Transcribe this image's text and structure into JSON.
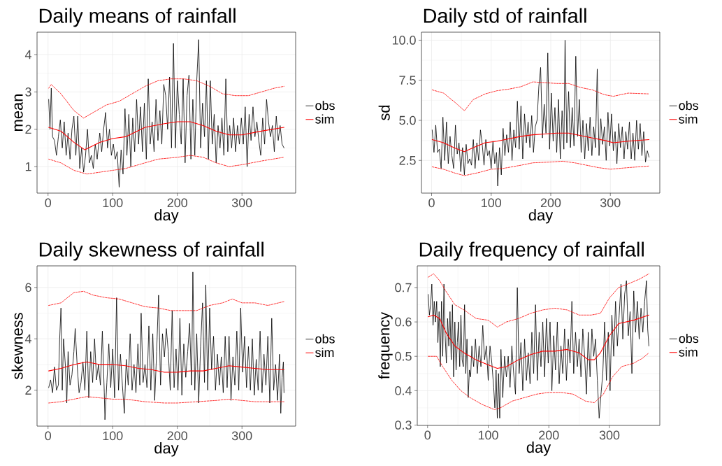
{
  "chart_data": [
    {
      "type": "line",
      "title": "Daily means of rainfall",
      "xlabel": "day",
      "ylabel": "mean",
      "xlim": [
        -17,
        383
      ],
      "ylim": [
        0.29,
        4.6
      ],
      "xticks": [
        0,
        100,
        200,
        300
      ],
      "yticks": [
        1,
        2,
        3,
        4
      ],
      "grid": true,
      "legend": "right",
      "series": [
        {
          "name": "obs",
          "color": "#000000",
          "x": [
            1,
            3,
            5,
            7,
            10,
            13,
            16,
            19,
            22,
            25,
            28,
            31,
            34,
            37,
            40,
            43,
            46,
            49,
            52,
            55,
            58,
            61,
            64,
            67,
            70,
            73,
            76,
            80,
            83,
            86,
            89,
            92,
            95,
            98,
            101,
            104,
            107,
            110,
            113,
            116,
            119,
            122,
            125,
            128,
            131,
            134,
            137,
            140,
            143,
            146,
            149,
            152,
            155,
            158,
            161,
            164,
            167,
            170,
            173,
            176,
            179,
            182,
            185,
            188,
            191,
            194,
            197,
            200,
            203,
            206,
            209,
            212,
            215,
            218,
            221,
            224,
            227,
            230,
            233,
            236,
            239,
            242,
            245,
            248,
            251,
            254,
            257,
            260,
            263,
            266,
            269,
            272,
            275,
            278,
            281,
            284,
            287,
            290,
            293,
            296,
            299,
            302,
            305,
            308,
            311,
            314,
            317,
            320,
            323,
            326,
            329,
            332,
            335,
            338,
            341,
            344,
            347,
            350,
            353,
            356,
            359,
            362,
            365
          ],
          "values": [
            2.8,
            2.0,
            3.1,
            1.8,
            1.7,
            1.3,
            1.8,
            2.25,
            1.5,
            2.2,
            1.3,
            1.9,
            1.2,
            2.0,
            2.35,
            1.3,
            2.35,
            0.95,
            1.5,
            0.85,
            1.3,
            2.0,
            1.1,
            1.3,
            0.95,
            1.6,
            1.2,
            1.9,
            1.4,
            2.0,
            2.45,
            1.5,
            2.0,
            1.3,
            1.6,
            1.2,
            1.4,
            0.45,
            1.45,
            0.8,
            2.55,
            1.3,
            2.4,
            1.0,
            2.3,
            1.4,
            2.8,
            1.6,
            2.6,
            1.4,
            2.7,
            1.2,
            3.35,
            1.6,
            2.2,
            1.4,
            2.8,
            1.7,
            2.5,
            1.6,
            3.2,
            2.9,
            2.0,
            3.4,
            1.5,
            4.3,
            1.5,
            3.3,
            2.4,
            1.6,
            3.35,
            1.1,
            2.9,
            3.45,
            1.2,
            2.8,
            1.3,
            3.3,
            4.4,
            1.5,
            2.7,
            1.8,
            3.3,
            1.2,
            3.3,
            1.6,
            2.4,
            1.1,
            2.1,
            1.5,
            2.3,
            1.3,
            3.35,
            1.4,
            2.1,
            1.5,
            2.3,
            1.4,
            2.1,
            1.6,
            2.3,
            1.6,
            2.6,
            1.0,
            2.4,
            1.7,
            2.6,
            1.8,
            2.2,
            1.7,
            1.3,
            2.3,
            1.6,
            2.8,
            2.2,
            1.8,
            2.1,
            1.4,
            2.35,
            1.7,
            2.1,
            1.6,
            1.5
          ]
        },
        {
          "name": "sim",
          "color": "#ff0000",
          "x": [
            1,
            20,
            40,
            57,
            80,
            100,
            120,
            150,
            180,
            200,
            220,
            240,
            260,
            280,
            300,
            330,
            365
          ],
          "values": [
            2.05,
            1.95,
            1.65,
            1.45,
            1.65,
            1.75,
            1.8,
            2.05,
            2.15,
            2.2,
            2.2,
            2.1,
            1.95,
            1.85,
            1.85,
            1.95,
            2.05
          ]
        },
        {
          "color": "#ff0000",
          "line_style": "dashed",
          "x": [
            1,
            5,
            20,
            40,
            55,
            70,
            90,
            110,
            130,
            150,
            170,
            190,
            210,
            230,
            250,
            270,
            290,
            310,
            330,
            350,
            365
          ],
          "values": [
            3.1,
            3.2,
            2.95,
            2.5,
            2.3,
            2.45,
            2.65,
            2.75,
            2.95,
            3.15,
            3.3,
            3.35,
            3.35,
            3.3,
            3.15,
            2.95,
            2.9,
            2.9,
            3.0,
            3.1,
            3.15
          ]
        },
        {
          "color": "#ff0000",
          "line_style": "dashed",
          "x": [
            1,
            20,
            40,
            60,
            80,
            100,
            120,
            150,
            170,
            200,
            220,
            240,
            260,
            280,
            300,
            330,
            365
          ],
          "values": [
            1.2,
            1.1,
            0.9,
            0.8,
            0.85,
            0.9,
            0.95,
            1.1,
            1.2,
            1.25,
            1.3,
            1.25,
            1.1,
            1.0,
            1.05,
            1.15,
            1.25
          ]
        }
      ]
    },
    {
      "type": "line",
      "title": "Daily std of rainfall",
      "xlabel": "day",
      "ylabel": "sd",
      "xlim": [
        -17,
        383
      ],
      "ylim": [
        0.46,
        10.5
      ],
      "xticks": [
        0,
        100,
        200,
        300
      ],
      "yticks": [
        2.5,
        {
          "value": 5,
          "label": "5.0"
        },
        7.5,
        {
          "value": 10,
          "label": "10.0"
        }
      ],
      "grid": true,
      "legend": "right",
      "series": [
        {
          "name": "obs",
          "color": "#000000",
          "x": [
            1,
            4,
            7,
            10,
            13,
            16,
            19,
            22,
            25,
            28,
            31,
            34,
            37,
            40,
            43,
            46,
            49,
            52,
            55,
            58,
            61,
            64,
            67,
            70,
            73,
            76,
            79,
            82,
            85,
            88,
            91,
            94,
            97,
            100,
            103,
            106,
            109,
            111,
            114,
            117,
            120,
            123,
            126,
            129,
            132,
            135,
            138,
            141,
            144,
            147,
            150,
            153,
            156,
            159,
            162,
            165,
            168,
            171,
            174,
            177,
            180,
            183,
            186,
            189,
            192,
            195,
            198,
            201,
            204,
            207,
            210,
            213,
            216,
            219,
            222,
            224,
            227,
            230,
            233,
            236,
            239,
            242,
            245,
            248,
            251,
            254,
            257,
            260,
            263,
            266,
            269,
            272,
            275,
            278,
            281,
            284,
            287,
            290,
            293,
            296,
            299,
            302,
            305,
            308,
            311,
            314,
            317,
            320,
            323,
            326,
            329,
            332,
            335,
            338,
            341,
            344,
            347,
            350,
            353,
            356,
            359,
            362,
            365
          ],
          "values": [
            4.4,
            3.0,
            4.7,
            3.0,
            3.2,
            2.0,
            5.2,
            2.5,
            4.9,
            2.3,
            4.0,
            2.8,
            2.0,
            4.7,
            2.9,
            3.6,
            1.8,
            3.3,
            1.6,
            3.5,
            2.3,
            2.6,
            2.2,
            3.8,
            2.0,
            3.6,
            2.5,
            4.4,
            3.5,
            2.2,
            3.8,
            2.8,
            3.1,
            2.0,
            3.7,
            2.3,
            3.0,
            0.9,
            3.3,
            1.6,
            4.5,
            2.8,
            4.1,
            3.0,
            4.9,
            2.5,
            4.4,
            3.3,
            6.2,
            3.2,
            5.9,
            2.6,
            5.4,
            3.6,
            4.9,
            3.3,
            5.3,
            3.0,
            4.6,
            5.0,
            7.1,
            8.3,
            3.9,
            6.0,
            4.2,
            9.2,
            3.2,
            6.7,
            3.7,
            5.8,
            3.0,
            6.3,
            2.6,
            5.6,
            3.2,
            10.0,
            3.6,
            6.8,
            3.3,
            5.8,
            3.4,
            9.0,
            4.0,
            6.3,
            3.0,
            5.0,
            2.6,
            4.8,
            3.1,
            5.2,
            2.8,
            4.6,
            3.3,
            8.2,
            2.8,
            5.1,
            3.5,
            4.6,
            2.5,
            5.5,
            3.4,
            5.4,
            3.1,
            4.3,
            2.3,
            4.8,
            3.3,
            4.6,
            2.6,
            4.3,
            3.2,
            4.9,
            2.6,
            4.2,
            2.5,
            5.0,
            3.2,
            4.8,
            2.8,
            4.3,
            2.4,
            3.1,
            2.7
          ]
        },
        {
          "name": "sim",
          "color": "#ff0000",
          "x": [
            1,
            20,
            40,
            55,
            70,
            90,
            110,
            130,
            150,
            170,
            190,
            210,
            230,
            250,
            270,
            290,
            305,
            330,
            365
          ],
          "values": [
            3.8,
            3.6,
            3.25,
            3.05,
            3.3,
            3.6,
            3.7,
            3.85,
            4.0,
            4.1,
            4.15,
            4.2,
            4.2,
            4.05,
            3.9,
            3.75,
            3.6,
            3.7,
            3.8
          ]
        },
        {
          "color": "#ff0000",
          "line_style": "dashed",
          "x": [
            1,
            20,
            40,
            55,
            70,
            90,
            110,
            130,
            150,
            170,
            190,
            210,
            230,
            250,
            270,
            290,
            305,
            330,
            365
          ],
          "values": [
            6.9,
            6.7,
            6.1,
            5.6,
            6.3,
            6.65,
            6.85,
            6.95,
            7.1,
            7.4,
            7.35,
            7.3,
            7.3,
            7.05,
            6.9,
            6.6,
            6.5,
            6.7,
            6.65
          ]
        },
        {
          "color": "#ff0000",
          "line_style": "dashed",
          "x": [
            1,
            20,
            40,
            55,
            80,
            100,
            120,
            150,
            170,
            200,
            220,
            240,
            260,
            280,
            300,
            330,
            365
          ],
          "values": [
            2.1,
            1.95,
            1.7,
            1.55,
            1.75,
            1.95,
            2.0,
            2.2,
            2.35,
            2.4,
            2.45,
            2.35,
            2.2,
            2.05,
            1.95,
            2.05,
            2.15
          ]
        }
      ]
    },
    {
      "type": "line",
      "title": "Daily skewness of rainfall",
      "xlabel": "day",
      "ylabel": "skewness",
      "xlim": [
        -17,
        383
      ],
      "ylim": [
        0.6,
        6.84
      ],
      "xticks": [
        0,
        100,
        200,
        300
      ],
      "yticks": [
        2,
        4,
        6
      ],
      "grid": true,
      "legend": "right",
      "series": [
        {
          "name": "obs",
          "color": "#000000",
          "x": [
            1,
            4,
            7,
            10,
            13,
            16,
            18,
            20,
            22,
            24,
            27,
            29,
            31,
            34,
            37,
            40,
            42,
            45,
            48,
            51,
            54,
            57,
            60,
            63,
            66,
            69,
            72,
            75,
            78,
            81,
            84,
            87,
            88,
            91,
            94,
            97,
            100,
            103,
            106,
            109,
            112,
            115,
            118,
            121,
            124,
            127,
            130,
            133,
            136,
            139,
            142,
            144,
            147,
            150,
            153,
            156,
            159,
            162,
            165,
            168,
            171,
            174,
            177,
            180,
            183,
            186,
            189,
            192,
            195,
            198,
            201,
            204,
            207,
            210,
            213,
            216,
            219,
            222,
            224,
            227,
            230,
            233,
            236,
            239,
            242,
            244,
            247,
            250,
            253,
            256,
            259,
            262,
            265,
            268,
            271,
            274,
            277,
            280,
            283,
            286,
            289,
            292,
            295,
            298,
            301,
            304,
            307,
            310,
            313,
            316,
            319,
            322,
            325,
            328,
            331,
            334,
            337,
            340,
            343,
            346,
            349,
            352,
            355,
            358,
            360,
            362,
            364,
            365
          ],
          "values": [
            2.1,
            2.4,
            1.9,
            2.9,
            2.0,
            2.2,
            4.0,
            5.2,
            2.0,
            4.0,
            2.9,
            1.5,
            3.5,
            2.2,
            2.6,
            3.5,
            4.4,
            3.0,
            1.9,
            2.3,
            3.1,
            2.0,
            4.3,
            1.7,
            3.5,
            2.3,
            4.0,
            2.4,
            3.0,
            2.2,
            4.3,
            1.9,
            0.85,
            2.3,
            3.8,
            2.1,
            3.6,
            1.7,
            5.6,
            2.0,
            3.4,
            2.2,
            1.1,
            3.2,
            2.2,
            4.2,
            2.0,
            3.0,
            1.9,
            3.8,
            2.2,
            5.0,
            2.3,
            3.0,
            2.1,
            4.5,
            2.0,
            4.2,
            1.6,
            3.5,
            5.7,
            2.2,
            4.2,
            3.3,
            4.4,
            3.5,
            2.0,
            5.1,
            2.1,
            3.6,
            2.0,
            4.8,
            1.8,
            3.8,
            2.5,
            3.5,
            4.6,
            2.2,
            6.6,
            2.0,
            4.2,
            1.5,
            3.7,
            5.4,
            2.3,
            6.1,
            2.0,
            5.2,
            2.8,
            4.1,
            2.0,
            3.4,
            2.2,
            3.3,
            1.9,
            4.1,
            2.1,
            4.1,
            1.6,
            3.3,
            2.2,
            4.3,
            2.0,
            5.2,
            2.7,
            4.1,
            2.1,
            3.7,
            2.0,
            4.0,
            1.8,
            3.2,
            2.0,
            4.3,
            1.9,
            3.4,
            2.2,
            4.1,
            1.5,
            4.8,
            2.0,
            3.0,
            1.6,
            3.4,
            1.1,
            2.5,
            3.1,
            1.9
          ]
        },
        {
          "name": "sim",
          "color": "#ff0000",
          "x": [
            1,
            20,
            40,
            60,
            80,
            100,
            120,
            140,
            160,
            180,
            200,
            220,
            240,
            260,
            280,
            300,
            320,
            340,
            365
          ],
          "values": [
            2.75,
            2.85,
            3.0,
            3.1,
            3.0,
            3.0,
            2.95,
            2.85,
            2.8,
            2.7,
            2.7,
            2.75,
            2.75,
            2.85,
            2.95,
            2.9,
            2.85,
            2.8,
            2.8
          ]
        },
        {
          "color": "#ff0000",
          "line_style": "dashed",
          "x": [
            1,
            20,
            40,
            55,
            70,
            90,
            110,
            130,
            150,
            170,
            190,
            210,
            230,
            250,
            270,
            285,
            300,
            320,
            340,
            365
          ],
          "values": [
            5.3,
            5.4,
            5.8,
            5.85,
            5.7,
            5.6,
            5.55,
            5.4,
            5.25,
            5.2,
            5.1,
            5.1,
            5.1,
            5.3,
            5.4,
            5.55,
            5.4,
            5.4,
            5.3,
            5.45
          ]
        },
        {
          "color": "#ff0000",
          "line_style": "dashed",
          "x": [
            1,
            20,
            40,
            60,
            80,
            100,
            120,
            150,
            180,
            200,
            230,
            260,
            280,
            300,
            320,
            345,
            365
          ],
          "values": [
            1.5,
            1.55,
            1.65,
            1.75,
            1.7,
            1.65,
            1.65,
            1.55,
            1.5,
            1.5,
            1.55,
            1.6,
            1.65,
            1.6,
            1.55,
            1.55,
            1.55
          ]
        }
      ]
    },
    {
      "type": "line",
      "title": "Daily frequency of rainfall",
      "xlabel": "day",
      "ylabel": "frequency",
      "xlim": [
        -17,
        383
      ],
      "ylim": [
        0.299,
        0.763
      ],
      "xticks": [
        0,
        100,
        200,
        300
      ],
      "yticks": [
        0.3,
        0.4,
        0.5,
        0.6,
        0.7
      ],
      "grid": true,
      "legend": "right",
      "series": [
        {
          "name": "obs",
          "color": "#000000",
          "x": [
            1,
            3,
            5,
            7,
            9,
            11,
            13,
            15,
            17,
            19,
            21,
            23,
            25,
            27,
            29,
            31,
            33,
            35,
            37,
            39,
            41,
            43,
            45,
            47,
            49,
            51,
            53,
            55,
            57,
            59,
            61,
            63,
            65,
            67,
            69,
            71,
            73,
            76,
            79,
            82,
            85,
            88,
            91,
            94,
            97,
            100,
            103,
            106,
            109,
            111,
            113,
            115,
            117,
            119,
            121,
            124,
            127,
            130,
            133,
            136,
            139,
            142,
            145,
            148,
            151,
            154,
            157,
            160,
            163,
            166,
            169,
            172,
            175,
            178,
            181,
            184,
            187,
            190,
            193,
            196,
            199,
            202,
            205,
            208,
            211,
            214,
            217,
            220,
            223,
            226,
            229,
            232,
            235,
            238,
            241,
            244,
            247,
            250,
            253,
            256,
            259,
            262,
            265,
            268,
            271,
            274,
            277,
            280,
            283,
            286,
            289,
            292,
            295,
            298,
            301,
            304,
            307,
            310,
            313,
            316,
            319,
            322,
            325,
            328,
            331,
            334,
            337,
            340,
            343,
            346,
            349,
            352,
            355,
            358,
            361,
            363,
            365
          ],
          "values": [
            0.68,
            0.62,
            0.65,
            0.71,
            0.59,
            0.66,
            0.6,
            0.66,
            0.54,
            0.63,
            0.47,
            0.66,
            0.5,
            0.71,
            0.56,
            0.48,
            0.61,
            0.53,
            0.63,
            0.49,
            0.65,
            0.44,
            0.6,
            0.46,
            0.54,
            0.6,
            0.47,
            0.62,
            0.49,
            0.47,
            0.65,
            0.45,
            0.55,
            0.38,
            0.46,
            0.44,
            0.53,
            0.47,
            0.55,
            0.45,
            0.53,
            0.47,
            0.59,
            0.49,
            0.53,
            0.43,
            0.53,
            0.48,
            0.41,
            0.35,
            0.46,
            0.32,
            0.45,
            0.32,
            0.52,
            0.38,
            0.5,
            0.44,
            0.5,
            0.41,
            0.53,
            0.45,
            0.39,
            0.7,
            0.45,
            0.54,
            0.4,
            0.55,
            0.43,
            0.51,
            0.42,
            0.57,
            0.45,
            0.65,
            0.43,
            0.57,
            0.47,
            0.6,
            0.44,
            0.61,
            0.48,
            0.6,
            0.4,
            0.56,
            0.46,
            0.6,
            0.42,
            0.53,
            0.45,
            0.58,
            0.43,
            0.55,
            0.48,
            0.66,
            0.45,
            0.57,
            0.47,
            0.55,
            0.44,
            0.58,
            0.5,
            0.39,
            0.57,
            0.44,
            0.58,
            0.5,
            0.55,
            0.43,
            0.32,
            0.39,
            0.45,
            0.6,
            0.43,
            0.57,
            0.4,
            0.62,
            0.5,
            0.66,
            0.53,
            0.62,
            0.71,
            0.55,
            0.68,
            0.72,
            0.56,
            0.63,
            0.45,
            0.69,
            0.57,
            0.66,
            0.55,
            0.64,
            0.57,
            0.66,
            0.72,
            0.58,
            0.53
          ]
        },
        {
          "name": "sim",
          "color": "#ff0000",
          "x": [
            1,
            10,
            20,
            30,
            45,
            60,
            80,
            100,
            115,
            130,
            150,
            170,
            190,
            210,
            230,
            250,
            265,
            275,
            285,
            300,
            315,
            340,
            365
          ],
          "values": [
            0.615,
            0.62,
            0.61,
            0.57,
            0.53,
            0.51,
            0.49,
            0.475,
            0.465,
            0.47,
            0.49,
            0.505,
            0.515,
            0.515,
            0.52,
            0.51,
            0.49,
            0.49,
            0.51,
            0.56,
            0.595,
            0.605,
            0.62
          ]
        },
        {
          "color": "#ff0000",
          "line_style": "dashed",
          "x": [
            1,
            10,
            20,
            30,
            45,
            60,
            80,
            100,
            115,
            130,
            150,
            170,
            190,
            210,
            230,
            250,
            270,
            285,
            300,
            315,
            330,
            350,
            365
          ],
          "values": [
            0.73,
            0.74,
            0.72,
            0.69,
            0.65,
            0.635,
            0.61,
            0.605,
            0.585,
            0.6,
            0.61,
            0.625,
            0.635,
            0.64,
            0.635,
            0.62,
            0.62,
            0.625,
            0.67,
            0.7,
            0.71,
            0.725,
            0.74
          ]
        },
        {
          "color": "#ff0000",
          "line_style": "dashed",
          "x": [
            1,
            15,
            25,
            40,
            55,
            70,
            90,
            110,
            120,
            140,
            160,
            180,
            200,
            220,
            240,
            260,
            275,
            290,
            305,
            320,
            340,
            355,
            365
          ],
          "values": [
            0.5,
            0.5,
            0.47,
            0.43,
            0.4,
            0.38,
            0.36,
            0.345,
            0.35,
            0.37,
            0.38,
            0.39,
            0.395,
            0.395,
            0.39,
            0.37,
            0.365,
            0.39,
            0.44,
            0.47,
            0.48,
            0.495,
            0.51
          ]
        }
      ]
    }
  ]
}
